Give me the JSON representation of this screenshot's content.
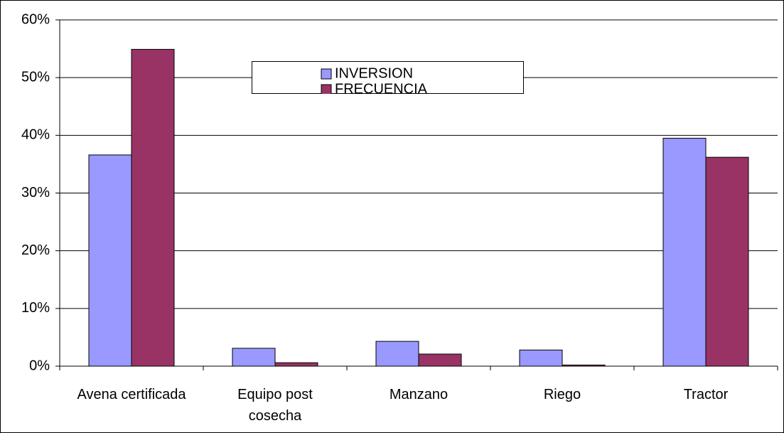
{
  "chart_data": {
    "type": "bar",
    "categories": [
      "Avena certificada",
      "Equipo post cosecha",
      "Manzano",
      "Riego",
      "Tractor"
    ],
    "series": [
      {
        "name": "INVERSION",
        "color": "#9999ff",
        "values": [
          36.6,
          3.1,
          4.3,
          2.8,
          39.5
        ]
      },
      {
        "name": "FRECUENCIA",
        "color": "#993366",
        "values": [
          54.9,
          0.6,
          2.1,
          0.2,
          36.2
        ]
      }
    ],
    "ylim": [
      0,
      60
    ],
    "yticks": [
      {
        "value": 0,
        "label": "0%"
      },
      {
        "value": 10,
        "label": "10%"
      },
      {
        "value": 20,
        "label": "20%"
      },
      {
        "value": 30,
        "label": "30%"
      },
      {
        "value": 40,
        "label": "40%"
      },
      {
        "value": 50,
        "label": "50%"
      },
      {
        "value": 60,
        "label": "60%"
      }
    ],
    "grid": true,
    "legend": "top"
  }
}
